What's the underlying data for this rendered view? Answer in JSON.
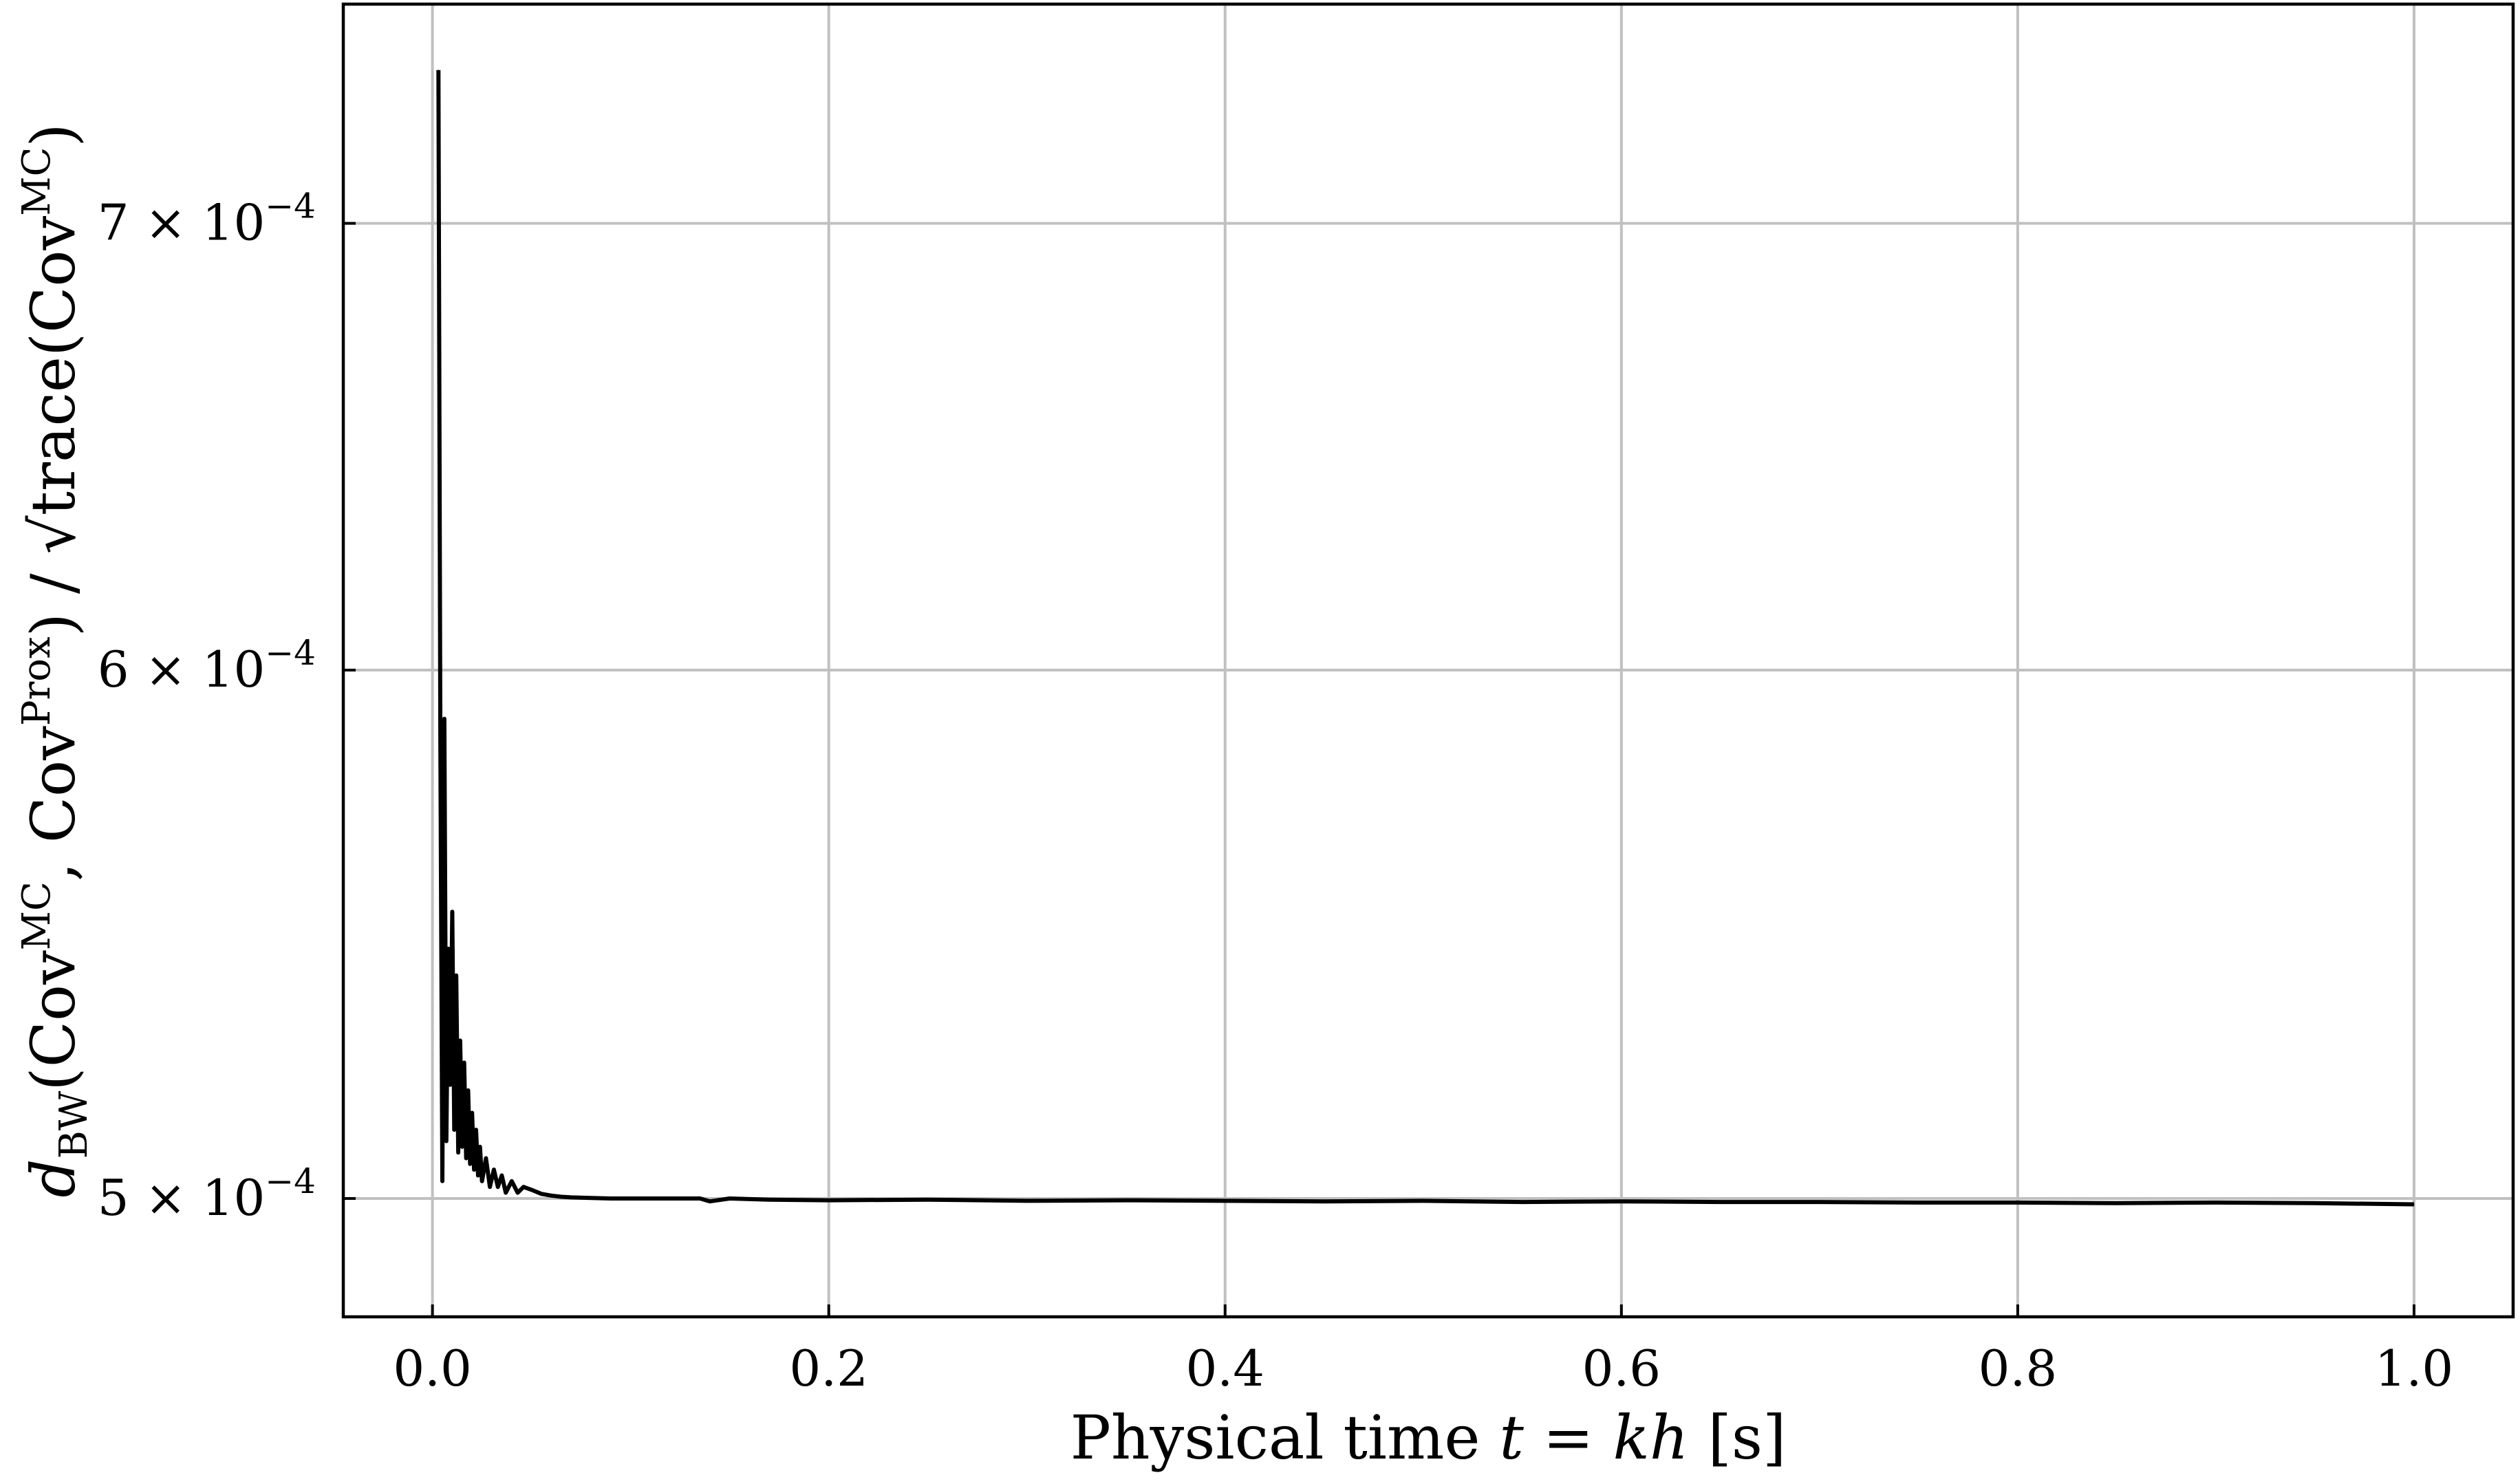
{
  "chart_data": {
    "type": "line",
    "xlabel": "Physical time t = kh [s]",
    "ylabel": "d_BW(Cov^MC, Cov^Prox) / √trace(Cov^MC)",
    "xlim": [
      -0.045,
      1.05
    ],
    "ylim": [
      0.00048,
      0.000755
    ],
    "yscale": "log",
    "grid": true,
    "x_ticks": [
      {
        "value": 0.0,
        "label": "0.0"
      },
      {
        "value": 0.2,
        "label": "0.2"
      },
      {
        "value": 0.4,
        "label": "0.4"
      },
      {
        "value": 0.6,
        "label": "0.6"
      },
      {
        "value": 0.8,
        "label": "0.8"
      },
      {
        "value": 1.0,
        "label": "1.0"
      }
    ],
    "y_ticks": [
      {
        "value": 0.0005,
        "label": "5 × 10",
        "exp": "−4"
      },
      {
        "value": 0.0006,
        "label": "6 × 10",
        "exp": "−4"
      },
      {
        "value": 0.0007,
        "label": "7 × 10",
        "exp": "−4"
      }
    ],
    "series": [
      {
        "color": "#000000",
        "x": [
          0.003,
          0.004,
          0.005,
          0.006,
          0.007,
          0.008,
          0.009,
          0.01,
          0.011,
          0.012,
          0.013,
          0.014,
          0.015,
          0.016,
          0.017,
          0.018,
          0.019,
          0.02,
          0.021,
          0.022,
          0.023,
          0.024,
          0.025,
          0.027,
          0.029,
          0.031,
          0.033,
          0.035,
          0.037,
          0.04,
          0.043,
          0.046,
          0.05,
          0.055,
          0.06,
          0.065,
          0.07,
          0.08,
          0.09,
          0.1,
          0.12,
          0.135,
          0.14,
          0.15,
          0.17,
          0.2,
          0.25,
          0.3,
          0.35,
          0.4,
          0.45,
          0.5,
          0.55,
          0.6,
          0.65,
          0.7,
          0.75,
          0.8,
          0.85,
          0.9,
          0.95,
          1.0
        ],
        "y": [
          0.000738,
          0.000585,
          0.000503,
          0.00059,
          0.00051,
          0.000545,
          0.00052,
          0.000552,
          0.000512,
          0.00054,
          0.000508,
          0.000528,
          0.000509,
          0.000524,
          0.000507,
          0.000519,
          0.000506,
          0.000515,
          0.000505,
          0.000512,
          0.000504,
          0.000509,
          0.000503,
          0.000507,
          0.000502,
          0.000505,
          0.000502,
          0.000504,
          0.000501,
          0.000503,
          0.000501,
          0.000502,
          0.0005015,
          0.0005008,
          0.0005005,
          0.0005003,
          0.0005002,
          0.0005001,
          0.0005,
          0.0005,
          0.0005,
          0.0005,
          0.0004995,
          0.0005,
          0.0004998,
          0.0004997,
          0.0004998,
          0.0004996,
          0.0004997,
          0.0004996,
          0.0004995,
          0.0004996,
          0.0004994,
          0.0004995,
          0.0004994,
          0.0004994,
          0.0004993,
          0.0004993,
          0.0004992,
          0.0004993,
          0.0004992,
          0.000499
        ]
      }
    ]
  }
}
